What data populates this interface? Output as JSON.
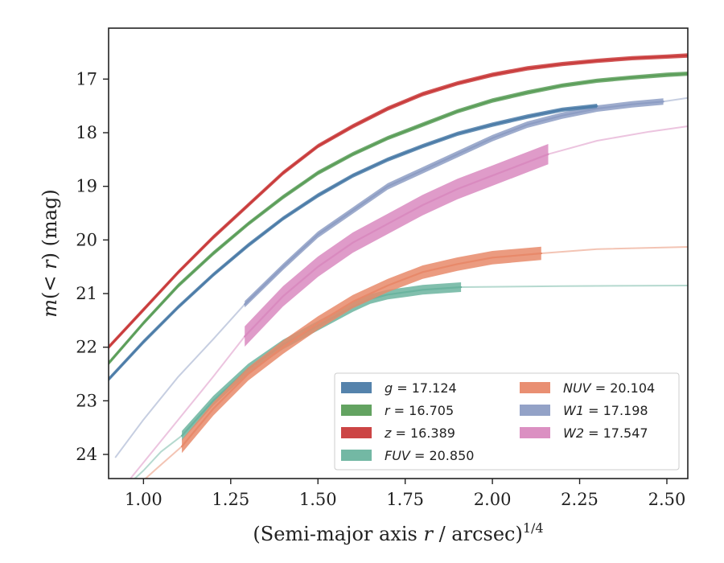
{
  "chart_data": {
    "type": "line",
    "title": "",
    "xlabel": "(Semi-major axis r / arcsec)",
    "xlabel_parts": [
      "(Semi-major axis ",
      "r",
      " / arcsec)",
      "1/4"
    ],
    "ylabel": "m(< r) (mag)",
    "ylabel_parts": [
      "m",
      "(< ",
      "r",
      ") (mag)"
    ],
    "xlim": [
      0.9,
      2.56
    ],
    "ylim": [
      24.45,
      16.05
    ],
    "y_inverted": true,
    "xticks": [
      1.0,
      1.25,
      1.5,
      1.75,
      2.0,
      2.25,
      2.5
    ],
    "xtick_labels": [
      "1.00",
      "1.25",
      "1.50",
      "1.75",
      "2.00",
      "2.25",
      "2.50"
    ],
    "yticks": [
      17,
      18,
      19,
      20,
      21,
      22,
      23,
      24
    ],
    "ytick_labels": [
      "17",
      "18",
      "19",
      "20",
      "21",
      "22",
      "23",
      "24"
    ],
    "grid": false,
    "legend_placement": "lower-right",
    "series": [
      {
        "name": "g",
        "legend_label": "g = 17.124",
        "legend_var": "g",
        "legend_value": "17.124",
        "color": "#4c7ca8",
        "x": [
          0.9,
          1.0,
          1.1,
          1.2,
          1.3,
          1.4,
          1.5,
          1.6,
          1.7,
          1.8,
          1.9,
          2.0,
          2.1,
          2.2,
          2.3
        ],
        "y": [
          22.6,
          21.9,
          21.25,
          20.65,
          20.1,
          19.6,
          19.17,
          18.8,
          18.5,
          18.25,
          18.02,
          17.85,
          17.7,
          17.57,
          17.5
        ],
        "solid_to": 2.3,
        "faint_x": [],
        "faint_y": [],
        "band": 0.08
      },
      {
        "name": "r",
        "legend_label": "r = 16.705",
        "legend_var": "r",
        "legend_value": "16.705",
        "color": "#5b9e59",
        "x": [
          0.9,
          1.0,
          1.1,
          1.2,
          1.3,
          1.4,
          1.5,
          1.6,
          1.7,
          1.8,
          1.9,
          2.0,
          2.1,
          2.2,
          2.3,
          2.4,
          2.5,
          2.56
        ],
        "y": [
          22.3,
          21.55,
          20.85,
          20.25,
          19.7,
          19.2,
          18.75,
          18.4,
          18.1,
          17.85,
          17.6,
          17.4,
          17.25,
          17.12,
          17.03,
          16.97,
          16.92,
          16.9
        ],
        "solid_to": 2.56,
        "faint_x": [],
        "faint_y": [],
        "band": 0.08
      },
      {
        "name": "z",
        "legend_label": "z = 16.389",
        "legend_var": "z",
        "legend_value": "16.389",
        "color": "#c93b3b",
        "x": [
          0.9,
          1.0,
          1.1,
          1.2,
          1.3,
          1.4,
          1.5,
          1.6,
          1.7,
          1.8,
          1.9,
          2.0,
          2.1,
          2.2,
          2.3,
          2.4,
          2.5,
          2.56
        ],
        "y": [
          22.0,
          21.3,
          20.6,
          19.95,
          19.35,
          18.75,
          18.25,
          17.88,
          17.55,
          17.28,
          17.08,
          16.92,
          16.8,
          16.72,
          16.66,
          16.61,
          16.58,
          16.56
        ],
        "solid_to": 2.56,
        "faint_x": [],
        "faint_y": [],
        "band": 0.08
      },
      {
        "name": "FUV",
        "legend_label": "FUV = 20.850",
        "legend_var": "FUV",
        "legend_value": "20.850",
        "color": "#6bb49f",
        "x": [
          1.11,
          1.2,
          1.3,
          1.4,
          1.5,
          1.6,
          1.65,
          1.7,
          1.8,
          1.91
        ],
        "y": [
          23.65,
          23.0,
          22.4,
          21.95,
          21.6,
          21.25,
          21.1,
          21.02,
          20.93,
          20.88
        ],
        "solid_to": 1.91,
        "faint_x": [
          0.95,
          1.0,
          1.05,
          1.11,
          1.91,
          2.2,
          2.56
        ],
        "faint_y": [
          24.6,
          24.3,
          23.95,
          23.65,
          20.88,
          20.86,
          20.85
        ],
        "band": 0.18
      },
      {
        "name": "NUV",
        "legend_label": "NUV = 20.104",
        "legend_var": "NUV",
        "legend_value": "20.104",
        "color": "#e8896a",
        "x": [
          1.11,
          1.2,
          1.3,
          1.4,
          1.5,
          1.6,
          1.7,
          1.8,
          1.9,
          2.0,
          2.14
        ],
        "y": [
          23.85,
          23.15,
          22.5,
          22.0,
          21.55,
          21.15,
          20.85,
          20.6,
          20.45,
          20.33,
          20.25
        ],
        "solid_to": 2.14,
        "faint_x": [
          0.98,
          1.04,
          1.11,
          2.14,
          2.3,
          2.56
        ],
        "faint_y": [
          24.6,
          24.25,
          23.85,
          20.25,
          20.17,
          20.13
        ],
        "band": 0.25
      },
      {
        "name": "W1",
        "legend_label": "W1 = 17.198",
        "legend_var": "W1",
        "legend_value": "17.198",
        "color": "#8d9dc4",
        "x": [
          1.29,
          1.4,
          1.5,
          1.6,
          1.7,
          1.8,
          1.9,
          2.0,
          2.1,
          2.2,
          2.3,
          2.4,
          2.49
        ],
        "y": [
          21.2,
          20.5,
          19.9,
          19.45,
          19.0,
          18.7,
          18.4,
          18.1,
          17.85,
          17.68,
          17.55,
          17.47,
          17.42
        ],
        "solid_to": 2.49,
        "faint_x": [
          0.92,
          1.0,
          1.1,
          1.2,
          1.29,
          2.49,
          2.56
        ],
        "faint_y": [
          24.05,
          23.35,
          22.55,
          21.85,
          21.2,
          17.42,
          17.35
        ],
        "band": 0.12
      },
      {
        "name": "W2",
        "legend_label": "W2 = 17.547",
        "legend_var": "W2",
        "legend_value": "17.547",
        "color": "#d98abf",
        "x": [
          1.29,
          1.4,
          1.5,
          1.6,
          1.7,
          1.8,
          1.9,
          2.0,
          2.1,
          2.16
        ],
        "y": [
          21.8,
          21.05,
          20.5,
          20.05,
          19.7,
          19.35,
          19.05,
          18.8,
          18.55,
          18.4
        ],
        "solid_to": 2.16,
        "faint_x": [
          0.95,
          1.0,
          1.1,
          1.2,
          1.29,
          2.16,
          2.3,
          2.45,
          2.56
        ],
        "faint_y": [
          24.55,
          24.15,
          23.35,
          22.55,
          21.8,
          18.4,
          18.15,
          17.98,
          17.88
        ],
        "band": 0.38
      }
    ]
  }
}
